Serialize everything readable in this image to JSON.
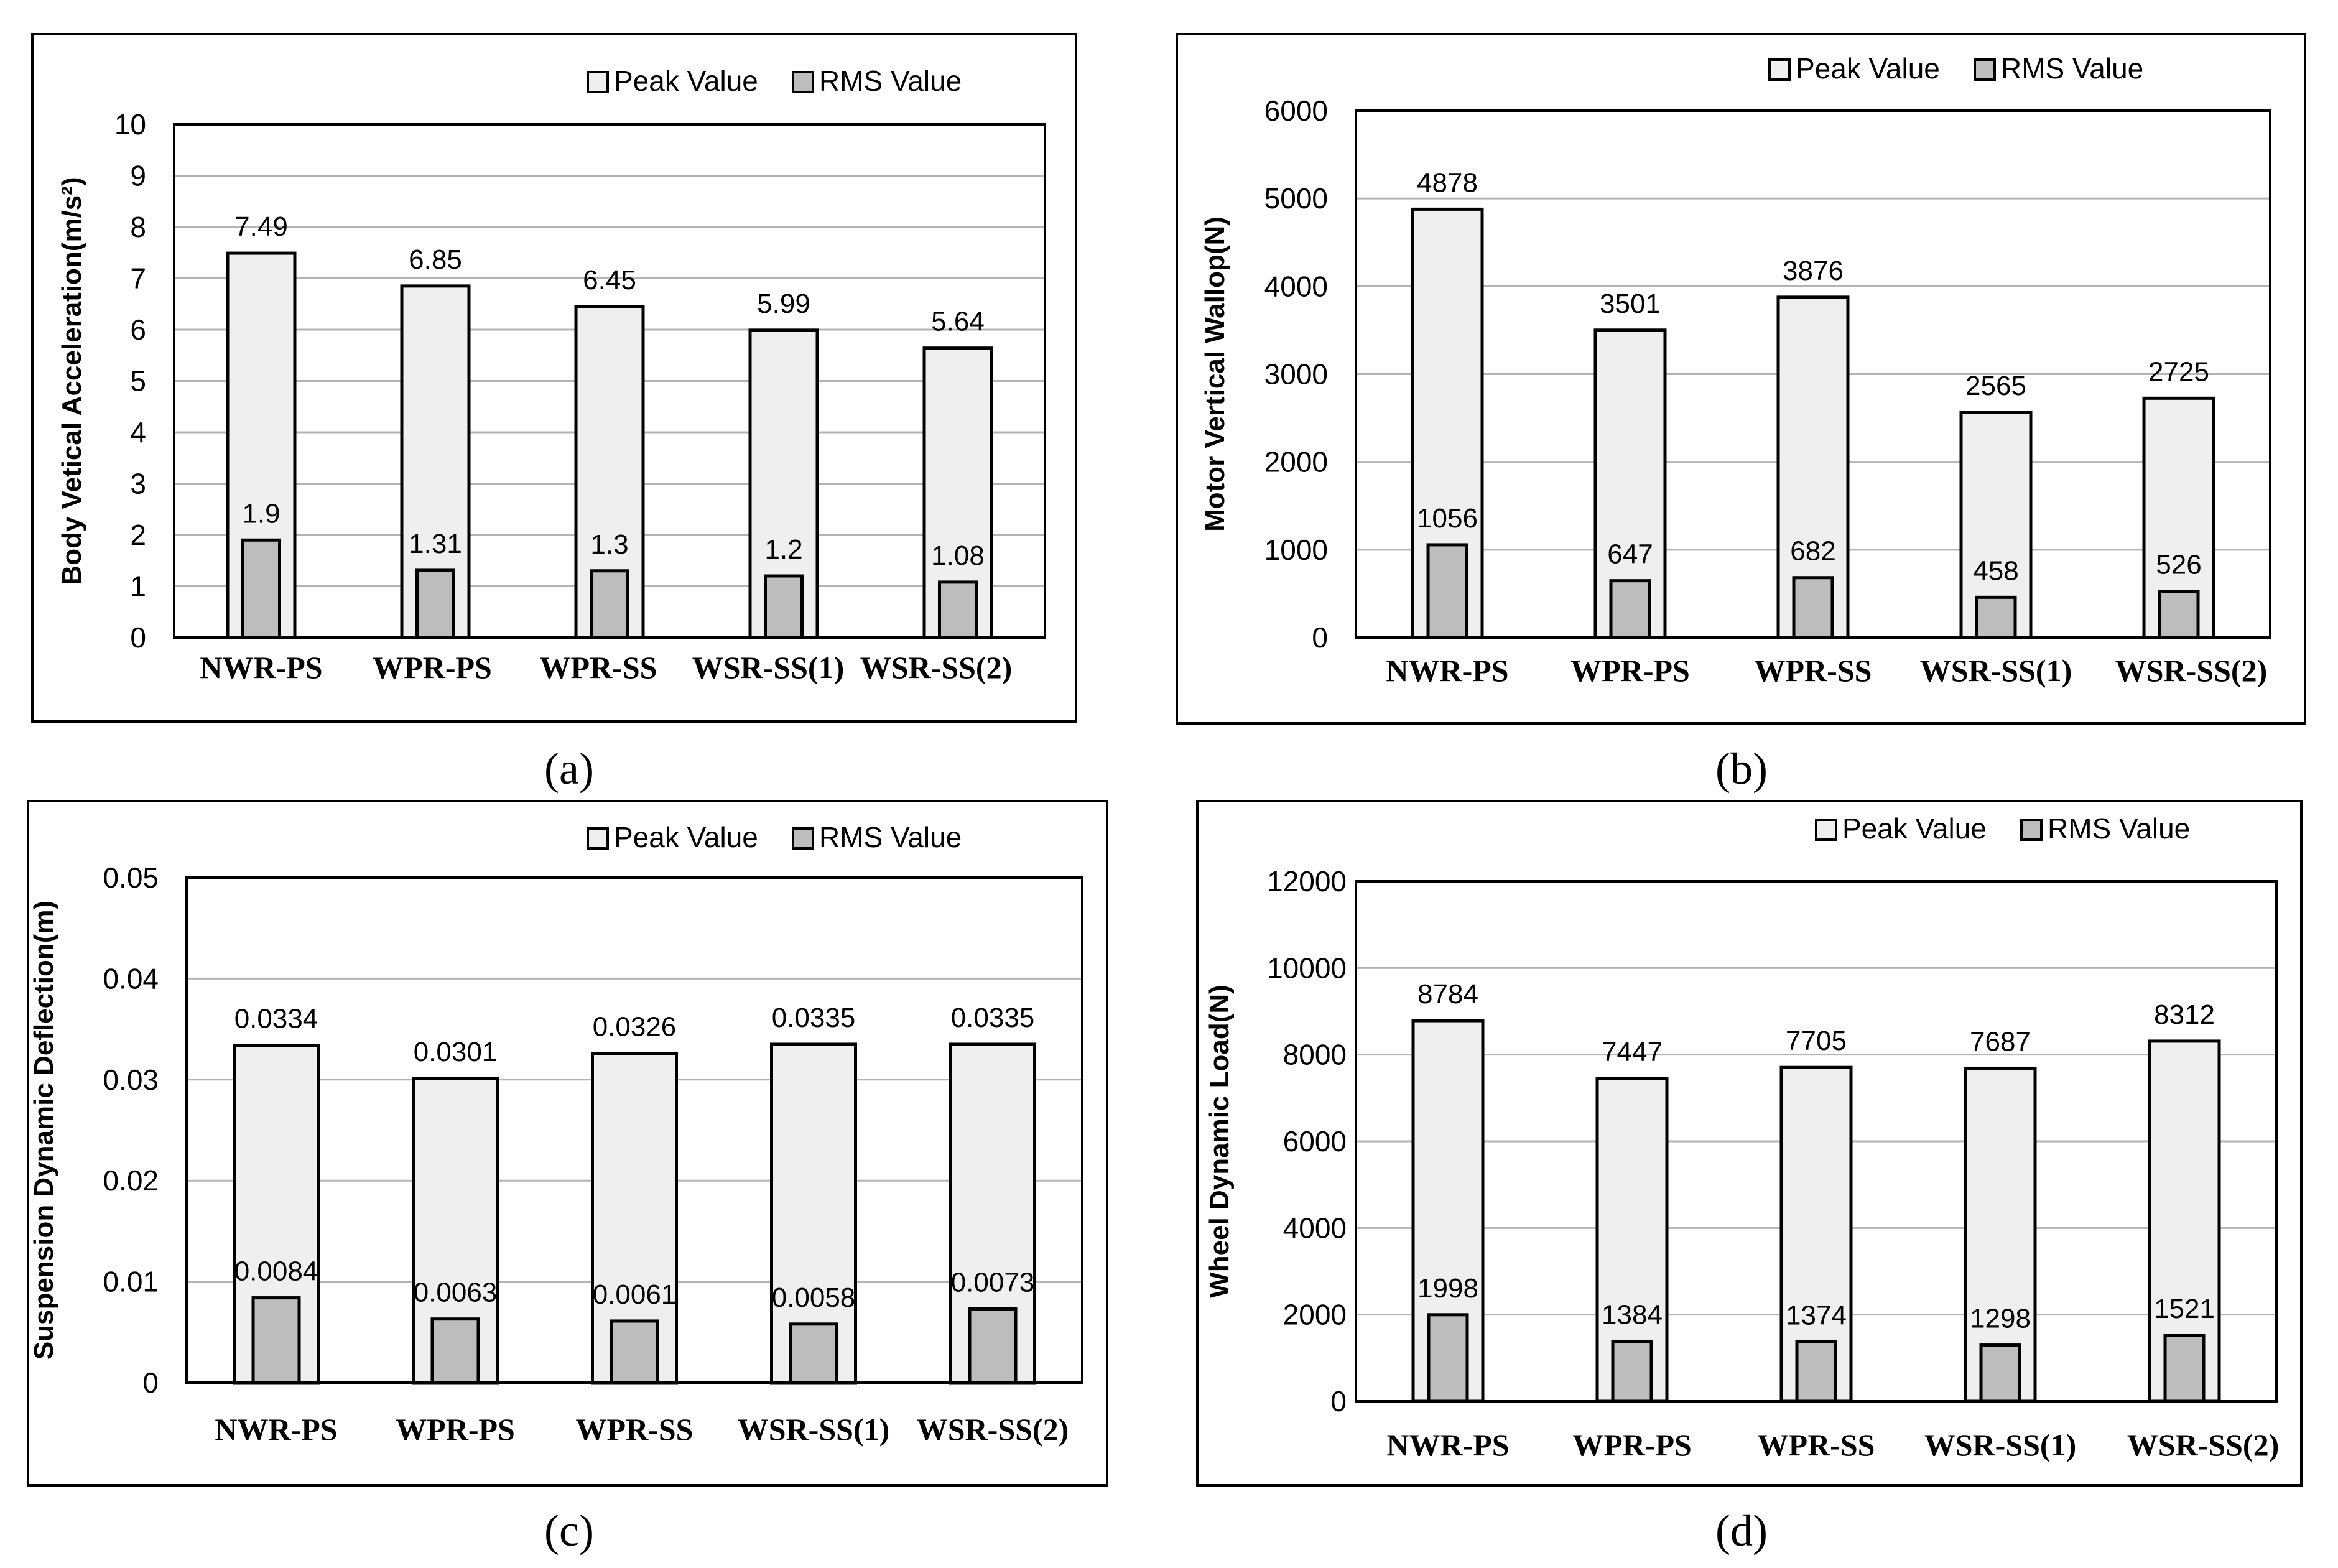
{
  "colors": {
    "peak_fill": "#efefef",
    "rms_fill": "#bdbdbd",
    "outline": "#000000",
    "grid": "#b4b4b4"
  },
  "chart_data": [
    {
      "type": "bar",
      "caption": "(a)",
      "title": "",
      "xlabel": "",
      "ylabel": "Body Vetical Acceleration(m/s²)",
      "categories": [
        "NWR-PS",
        "WPR-PS",
        "WPR-SS",
        "WSR-SS(1)",
        "WSR-SS(2)"
      ],
      "ylim": [
        0,
        10
      ],
      "yticks": [
        0,
        1,
        2,
        3,
        4,
        5,
        6,
        7,
        8,
        9,
        10
      ],
      "ytick_labels": [
        "0",
        "1",
        "2",
        "3",
        "4",
        "5",
        "6",
        "7",
        "8",
        "9",
        "10"
      ],
      "grid": true,
      "legend": "top-right",
      "series": [
        {
          "name": "Peak Value",
          "values": [
            7.49,
            6.85,
            6.45,
            5.99,
            5.64
          ],
          "labels": [
            "7.49",
            "6.85",
            "6.45",
            "5.99",
            "5.64"
          ]
        },
        {
          "name": "RMS Value",
          "values": [
            1.9,
            1.31,
            1.3,
            1.2,
            1.08
          ],
          "labels": [
            "1.9",
            "1.31",
            "1.3",
            "1.2",
            "1.08"
          ]
        }
      ]
    },
    {
      "type": "bar",
      "caption": "(b)",
      "title": "",
      "xlabel": "",
      "ylabel": "Motor Vertical Wallop(N)",
      "categories": [
        "NWR-PS",
        "WPR-PS",
        "WPR-SS",
        "WSR-SS(1)",
        "WSR-SS(2)"
      ],
      "ylim": [
        0,
        6000
      ],
      "yticks": [
        0,
        1000,
        2000,
        3000,
        4000,
        5000,
        6000
      ],
      "ytick_labels": [
        "0",
        "1000",
        "2000",
        "3000",
        "4000",
        "5000",
        "6000"
      ],
      "grid": true,
      "legend": "top-right",
      "series": [
        {
          "name": "Peak Value",
          "values": [
            4878,
            3501,
            3876,
            2565,
            2725
          ],
          "labels": [
            "4878",
            "3501",
            "3876",
            "2565",
            "2725"
          ]
        },
        {
          "name": "RMS Value",
          "values": [
            1056,
            647,
            682,
            458,
            526
          ],
          "labels": [
            "1056",
            "647",
            "682",
            "458",
            "526"
          ]
        }
      ]
    },
    {
      "type": "bar",
      "caption": "(c)",
      "title": "",
      "xlabel": "",
      "ylabel": "Suspension Dynamic Deflection(m)",
      "categories": [
        "NWR-PS",
        "WPR-PS",
        "WPR-SS",
        "WSR-SS(1)",
        "WSR-SS(2)"
      ],
      "ylim": [
        0,
        0.05
      ],
      "yticks": [
        0,
        0.01,
        0.02,
        0.03,
        0.04,
        0.05
      ],
      "ytick_labels": [
        "0",
        "0.01",
        "0.02",
        "0.03",
        "0.04",
        "0.05"
      ],
      "grid": true,
      "legend": "top-right",
      "series": [
        {
          "name": "Peak Value",
          "values": [
            0.0334,
            0.0301,
            0.0326,
            0.0335,
            0.0335
          ],
          "labels": [
            "0.0334",
            "0.0301",
            "0.0326",
            "0.0335",
            "0.0335"
          ]
        },
        {
          "name": "RMS Value",
          "values": [
            0.0084,
            0.0063,
            0.0061,
            0.0058,
            0.0073
          ],
          "labels": [
            "0.0084",
            "0.0063",
            "0.0061",
            "0.0058",
            "0.0073"
          ]
        }
      ]
    },
    {
      "type": "bar",
      "caption": "(d)",
      "title": "",
      "xlabel": "",
      "ylabel": "Wheel Dynamic Load(N)",
      "categories": [
        "NWR-PS",
        "WPR-PS",
        "WPR-SS",
        "WSR-SS(1)",
        "WSR-SS(2)"
      ],
      "ylim": [
        0,
        12000
      ],
      "yticks": [
        0,
        2000,
        4000,
        6000,
        8000,
        10000,
        12000
      ],
      "ytick_labels": [
        "0",
        "2000",
        "4000",
        "6000",
        "8000",
        "10000",
        "12000"
      ],
      "grid": true,
      "legend": "top-right",
      "series": [
        {
          "name": "Peak Value",
          "values": [
            8784,
            7447,
            7705,
            7687,
            8312
          ],
          "labels": [
            "8784",
            "7447",
            "7705",
            "7687",
            "8312"
          ]
        },
        {
          "name": "RMS Value",
          "values": [
            1998,
            1384,
            1374,
            1298,
            1521
          ],
          "labels": [
            "1998",
            "1384",
            "1374",
            "1298",
            "1521"
          ]
        }
      ]
    }
  ]
}
